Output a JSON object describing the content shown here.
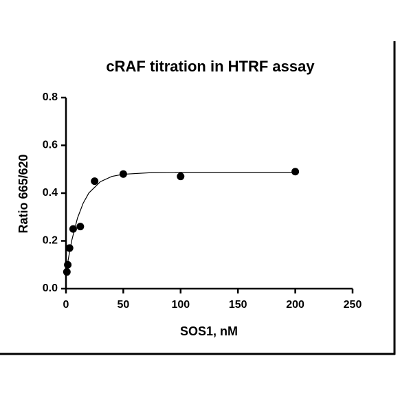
{
  "chart_data": {
    "type": "scatter",
    "title": "cRAF titration in HTRF assay",
    "x_label": "SOS1, nM",
    "y_label": "Ratio 665/620",
    "color": "#000000",
    "x": [
      0.78,
      1.56,
      3.125,
      6.25,
      12.5,
      25,
      50,
      100,
      200
    ],
    "values": [
      0.07,
      0.1,
      0.17,
      0.25,
      0.26,
      0.45,
      0.48,
      0.47,
      0.49
    ],
    "fit": {
      "x": [
        0,
        2,
        5,
        10,
        15,
        20,
        30,
        40,
        50,
        75,
        100,
        150,
        200
      ],
      "values": [
        0.06,
        0.123,
        0.201,
        0.295,
        0.358,
        0.401,
        0.448,
        0.47,
        0.479,
        0.486,
        0.487,
        0.487,
        0.487
      ]
    },
    "xlim": [
      0,
      250
    ],
    "xticks": [
      0,
      50,
      100,
      150,
      200,
      250
    ],
    "ylim": [
      0,
      0.8
    ],
    "yticks": [
      {
        "value": 0,
        "label": "0.0"
      },
      0.2,
      0.4,
      0.6,
      0.8
    ]
  }
}
